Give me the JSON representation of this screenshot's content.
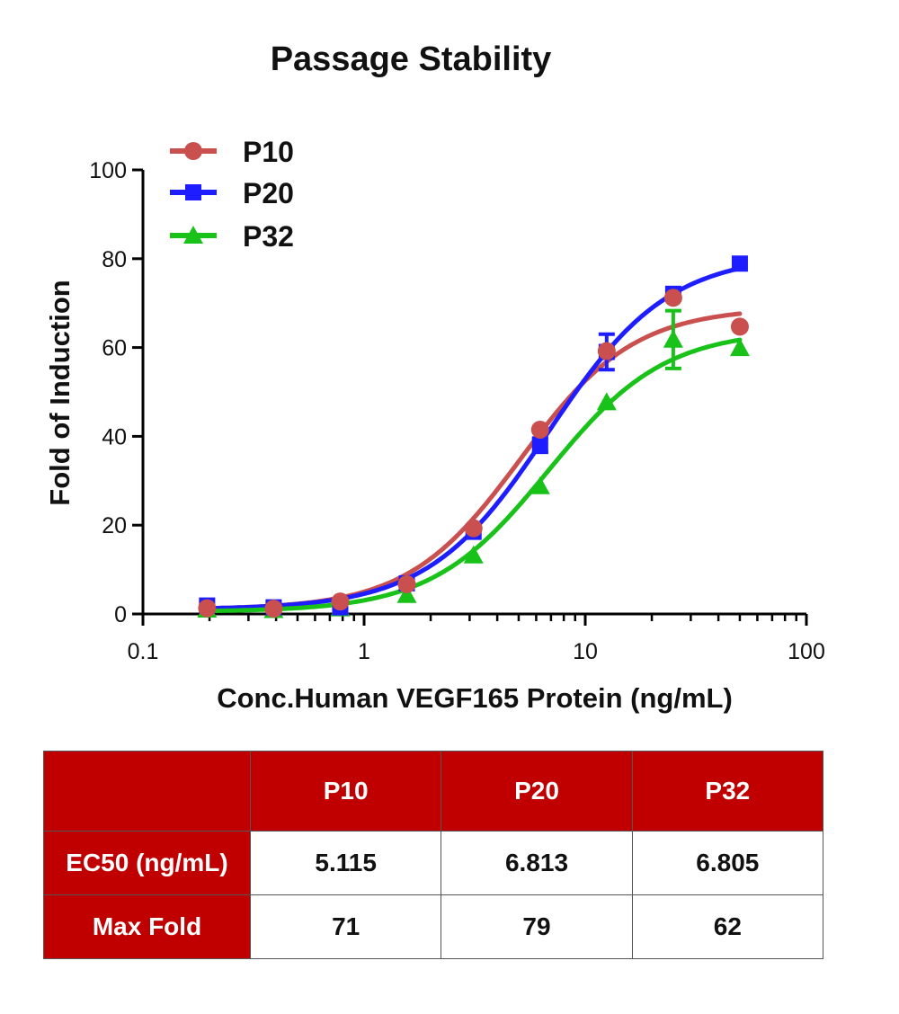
{
  "chart_data": {
    "type": "line",
    "title": "Passage Stability",
    "xlabel": "Conc.Human VEGF165 Protein (ng/mL)",
    "ylabel": "Fold of Induction",
    "xscale": "log",
    "xlim": [
      0.1,
      100
    ],
    "ylim": [
      0,
      100
    ],
    "xticks": [
      "0.1",
      "1",
      "10",
      "100"
    ],
    "yticks": [
      "0",
      "20",
      "40",
      "60",
      "80",
      "100"
    ],
    "legend_position": "top-left",
    "x": [
      0.195,
      0.39,
      0.78,
      1.56,
      3.125,
      6.25,
      12.5,
      25,
      50
    ],
    "series": [
      {
        "name": "P10",
        "color": "#c9504f",
        "marker": "circle",
        "values": [
          1.3,
          1.2,
          2.8,
          6.7,
          19.3,
          41.5,
          59.2,
          71.2,
          64.7
        ],
        "errors": [
          0,
          0,
          0,
          0,
          0,
          0,
          0,
          0,
          0
        ],
        "fit": {
          "bottom": 1.0,
          "top": 69.0,
          "ec50": 5.115,
          "hill": 1.7
        }
      },
      {
        "name": "P20",
        "color": "#1d1dff",
        "marker": "square",
        "values": [
          1.9,
          1.5,
          1.5,
          6.9,
          18.5,
          38.0,
          59.0,
          72.1,
          78.9
        ],
        "errors": [
          0,
          0,
          0,
          0,
          0,
          1.6,
          4.0,
          0,
          0
        ],
        "fit": {
          "bottom": 1.0,
          "top": 81.0,
          "ec50": 6.813,
          "hill": 1.6
        }
      },
      {
        "name": "P32",
        "color": "#19c219",
        "marker": "triangle",
        "values": [
          1.0,
          0.9,
          1.3,
          4.3,
          13.2,
          28.8,
          47.7,
          61.8,
          59.9
        ],
        "errors": [
          0,
          0,
          0,
          0,
          0,
          0,
          0,
          6.5,
          0
        ],
        "fit": {
          "bottom": 0.5,
          "top": 64.0,
          "ec50": 6.805,
          "hill": 1.65
        }
      }
    ]
  },
  "table": {
    "headers": [
      "",
      "P10",
      "P20",
      "P32"
    ],
    "rows": [
      {
        "label": "EC50 (ng/mL)",
        "values": [
          "5.115",
          "6.813",
          "6.805"
        ]
      },
      {
        "label": "Max Fold",
        "values": [
          "71",
          "79",
          "62"
        ]
      }
    ]
  }
}
